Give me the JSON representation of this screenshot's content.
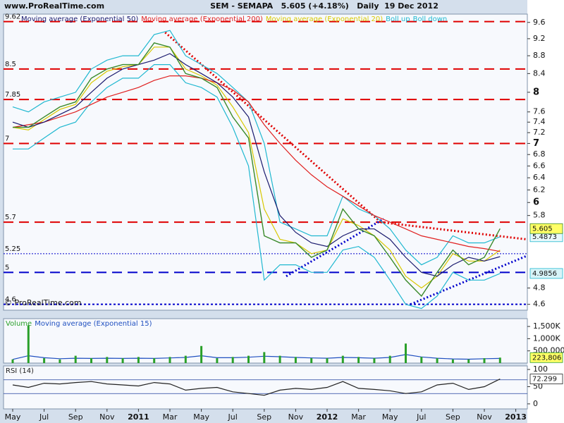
{
  "chart_data": [
    {
      "type": "line",
      "source": "www.ProRealTime.com",
      "title": "SEM - SEMAPA   5.605 (+4.18%)   Daily  19 Dec 2012",
      "copyright": "© ProRealTime.com",
      "log_scale": true,
      "ylim": [
        4.53,
        9.81
      ],
      "yticks": [
        4.6,
        4.8,
        5.8,
        6,
        6.2,
        6.4,
        6.6,
        6.8,
        7,
        7.2,
        7.4,
        7.6,
        8,
        8.4,
        8.8,
        9.2,
        9.6
      ],
      "values": [
        7.3,
        7.3,
        7.5,
        7.7,
        7.8,
        8.3,
        8.5,
        8.6,
        8.6,
        9.1,
        9.0,
        8.4,
        8.3,
        8.1,
        7.5,
        7.1,
        5.5,
        5.4,
        5.4,
        5.2,
        5.3,
        5.9,
        5.6,
        5.5,
        5.2,
        4.9,
        4.7,
        5.0,
        5.3,
        5.1,
        5.2,
        5.605,
        null
      ],
      "color": "#3a8a2a",
      "box": "#ffff66",
      "levels": [
        {
          "value": 9.62,
          "color": "#e00000",
          "dash": "14 8",
          "width": 2
        },
        {
          "value": 8.5,
          "color": "#e00000",
          "dash": "14 8",
          "width": 2
        },
        {
          "value": 7.85,
          "color": "#e00000",
          "dash": "14 8",
          "width": 2
        },
        {
          "value": 7,
          "color": "#e00000",
          "dash": "14 8",
          "width": 2
        },
        {
          "value": 5.7,
          "color": "#e00000",
          "dash": "14 8",
          "width": 2
        },
        {
          "value": 5.25,
          "color": "#0000cc",
          "dash": "2 2",
          "width": 1
        },
        {
          "value": 5,
          "color": "#0000cc",
          "dash": "14 8",
          "width": 2
        },
        {
          "value": 4.6,
          "color": "#0000cc",
          "dash": "3 3",
          "width": 2
        }
      ],
      "trendlines": [
        {
          "x": [
            9.7,
            23.4
          ],
          "y": [
            9.35,
            5.7
          ],
          "color": "#e00000"
        },
        {
          "x": [
            23.4,
            32.7
          ],
          "y": [
            5.7,
            5.45
          ],
          "color": "#e00000"
        },
        {
          "x": [
            17.4,
            23.6
          ],
          "y": [
            4.95,
            5.75
          ],
          "color": "#0000cc"
        },
        {
          "x": [
            25.3,
            32.7
          ],
          "y": [
            4.6,
            5.22
          ],
          "color": "#0000cc"
        }
      ],
      "series": [
        {
          "name": "Moving average (Exponential 50)",
          "color": "#1a1a6e",
          "values": [
            7.4,
            7.3,
            7.4,
            7.55,
            7.7,
            8.0,
            8.3,
            8.5,
            8.6,
            8.7,
            8.85,
            8.6,
            8.4,
            8.2,
            7.9,
            7.5,
            6.5,
            5.8,
            5.55,
            5.4,
            5.35,
            5.5,
            5.6,
            5.6,
            5.45,
            5.2,
            5.0,
            4.95,
            5.1,
            5.2,
            5.15,
            5.21,
            null
          ]
        },
        {
          "name": "Moving average (Exponential 200)",
          "color": "#e02020",
          "values": [
            7.3,
            7.35,
            7.4,
            7.5,
            7.6,
            7.75,
            7.9,
            8.0,
            8.1,
            8.25,
            8.35,
            8.35,
            8.3,
            8.2,
            8.05,
            7.8,
            7.35,
            7.0,
            6.7,
            6.45,
            6.25,
            6.1,
            5.95,
            5.8,
            5.7,
            5.6,
            5.5,
            5.45,
            5.4,
            5.35,
            5.32,
            5.28,
            null
          ]
        },
        {
          "name": "Moving average (Exponential 20)",
          "color": "#d8c800",
          "values": [
            7.3,
            7.25,
            7.45,
            7.65,
            7.75,
            8.2,
            8.45,
            8.55,
            8.6,
            9.0,
            9.0,
            8.5,
            8.35,
            8.15,
            7.7,
            7.2,
            5.9,
            5.45,
            5.4,
            5.25,
            5.3,
            5.75,
            5.65,
            5.5,
            5.3,
            4.95,
            4.8,
            4.95,
            5.25,
            5.15,
            5.15,
            5.3,
            null
          ]
        },
        {
          "name": "Boll up",
          "color": "#20b8d0",
          "box": "#e8f8fb",
          "values": [
            7.7,
            7.6,
            7.8,
            7.9,
            8.0,
            8.5,
            8.7,
            8.8,
            8.8,
            9.3,
            9.4,
            8.8,
            8.6,
            8.4,
            8.1,
            7.8,
            7.0,
            5.7,
            5.6,
            5.5,
            5.5,
            6.1,
            5.9,
            5.8,
            5.6,
            5.3,
            5.1,
            5.2,
            5.5,
            5.4,
            5.4,
            5.4873,
            null
          ]
        },
        {
          "name": "Boll down",
          "color": "#20b8d0",
          "box": "#d8f4f8",
          "values": [
            6.9,
            6.9,
            7.1,
            7.3,
            7.4,
            7.8,
            8.1,
            8.3,
            8.3,
            8.6,
            8.6,
            8.2,
            8.1,
            7.9,
            7.3,
            6.6,
            4.9,
            5.1,
            5.1,
            5.0,
            5.0,
            5.3,
            5.35,
            5.2,
            4.9,
            4.6,
            4.55,
            4.7,
            5.0,
            4.9,
            4.9,
            4.9856,
            null
          ]
        }
      ]
    },
    {
      "type": "bar",
      "ylim": [
        0,
        1820000
      ],
      "yticks": [
        {
          "value": 500000,
          "label": "500,000"
        },
        {
          "value": 1000000,
          "label": "1,000K"
        },
        {
          "value": 1500000,
          "label": "1,500K"
        }
      ],
      "series": [
        {
          "name": "Volume",
          "color": "#2aa02a",
          "type": "bar",
          "box": "#ffff66",
          "values": [
            150000,
            1550000,
            200000,
            150000,
            300000,
            200000,
            250000,
            200000,
            250000,
            200000,
            250000,
            300000,
            700000,
            200000,
            250000,
            300000,
            450000,
            300000,
            250000,
            200000,
            200000,
            300000,
            250000,
            200000,
            300000,
            800000,
            250000,
            200000,
            150000,
            150000,
            200000,
            223806,
            null
          ],
          "value_labels": [
            null,
            null,
            null,
            null,
            null,
            null,
            null,
            null,
            null,
            null,
            null,
            null,
            null,
            null,
            null,
            null,
            null,
            null,
            null,
            null,
            null,
            null,
            null,
            null,
            null,
            null,
            null,
            null,
            null,
            null,
            null,
            "223,806",
            null
          ]
        },
        {
          "name": "Moving average (Exponential 15)",
          "color": "#2050c0",
          "type": "line",
          "values": [
            150000,
            300000,
            220000,
            180000,
            200000,
            190000,
            200000,
            190000,
            200000,
            190000,
            210000,
            230000,
            300000,
            220000,
            220000,
            240000,
            280000,
            260000,
            230000,
            210000,
            200000,
            230000,
            220000,
            200000,
            230000,
            350000,
            250000,
            200000,
            170000,
            160000,
            180000,
            190000,
            null
          ]
        }
      ]
    },
    {
      "type": "line",
      "ylim": [
        -14.6,
        110.4
      ],
      "yticks": [
        0,
        50,
        100
      ],
      "guides": [
        30,
        70
      ],
      "categories": [
        "May",
        null,
        "Jul",
        null,
        "Sep",
        null,
        "Nov",
        null,
        "2011",
        null,
        "Mar",
        null,
        "May",
        null,
        "Jul",
        null,
        "Sep",
        null,
        "Nov",
        null,
        "2012",
        null,
        "Mar",
        null,
        "May",
        null,
        "Jul",
        null,
        "Sep",
        null,
        "Nov",
        null,
        "2013"
      ],
      "series": [
        {
          "name": "RSI (14)",
          "color": "#222222",
          "box": "#ffffff",
          "values": [
            55,
            48,
            60,
            58,
            62,
            65,
            58,
            55,
            52,
            62,
            58,
            40,
            45,
            48,
            35,
            30,
            25,
            40,
            45,
            42,
            48,
            65,
            45,
            42,
            38,
            30,
            35,
            55,
            60,
            42,
            50,
            72.299,
            null
          ]
        }
      ]
    }
  ]
}
